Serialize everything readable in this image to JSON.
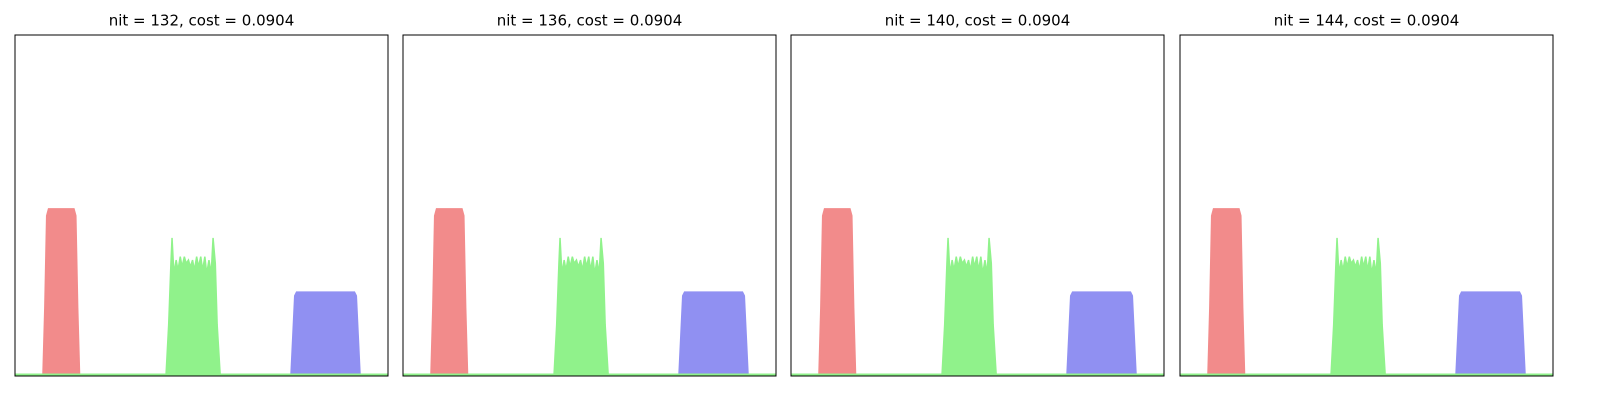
{
  "chart_data": [
    {
      "type": "area",
      "title": "nit = 132, cost = 0.0904",
      "xlim": [
        0,
        1
      ],
      "ylim": [
        0,
        1
      ],
      "series": [
        {
          "color": "#f28b8b",
          "x": [
            0.075,
            0.08,
            0.085,
            0.09,
            0.158,
            0.163,
            0.168,
            0.173
          ],
          "values": [
            0.005,
            0.2,
            0.47,
            0.49,
            0.49,
            0.47,
            0.2,
            0.005
          ]
        },
        {
          "color": "#9090f2",
          "x": [
            0.74,
            0.745,
            0.75,
            0.755,
            0.91,
            0.915,
            0.92,
            0.925
          ],
          "values": [
            0.005,
            0.12,
            0.235,
            0.246,
            0.246,
            0.235,
            0.12,
            0.005
          ]
        },
        {
          "color": "#90f28b",
          "x": [
            0,
            0.405,
            0.412,
            0.418,
            0.421,
            0.426,
            0.432,
            0.437,
            0.443,
            0.448,
            0.454,
            0.459,
            0.465,
            0.47,
            0.476,
            0.481,
            0.487,
            0.492,
            0.498,
            0.503,
            0.509,
            0.514,
            0.52,
            0.526,
            0.531,
            0.537,
            0.542,
            0.55,
            1
          ],
          "values": [
            0.005,
            0.005,
            0.15,
            0.33,
            0.405,
            0.3,
            0.34,
            0.31,
            0.35,
            0.32,
            0.35,
            0.33,
            0.34,
            0.32,
            0.34,
            0.31,
            0.35,
            0.32,
            0.35,
            0.31,
            0.35,
            0.3,
            0.34,
            0.3,
            0.405,
            0.33,
            0.15,
            0.005,
            0.005
          ]
        }
      ]
    },
    {
      "type": "area",
      "title": "nit = 136, cost = 0.0904",
      "xlim": [
        0,
        1
      ],
      "ylim": [
        0,
        1
      ],
      "series": [
        {
          "color": "#f28b8b",
          "x": [
            0.075,
            0.08,
            0.085,
            0.09,
            0.158,
            0.163,
            0.168,
            0.173
          ],
          "values": [
            0.005,
            0.2,
            0.47,
            0.49,
            0.49,
            0.47,
            0.2,
            0.005
          ]
        },
        {
          "color": "#9090f2",
          "x": [
            0.74,
            0.745,
            0.75,
            0.755,
            0.91,
            0.915,
            0.92,
            0.925
          ],
          "values": [
            0.005,
            0.12,
            0.235,
            0.246,
            0.246,
            0.235,
            0.12,
            0.005
          ]
        },
        {
          "color": "#90f28b",
          "x": [
            0,
            0.405,
            0.412,
            0.418,
            0.421,
            0.426,
            0.432,
            0.437,
            0.443,
            0.448,
            0.454,
            0.459,
            0.465,
            0.47,
            0.476,
            0.481,
            0.487,
            0.492,
            0.498,
            0.503,
            0.509,
            0.514,
            0.52,
            0.526,
            0.531,
            0.537,
            0.542,
            0.55,
            1
          ],
          "values": [
            0.005,
            0.005,
            0.15,
            0.33,
            0.405,
            0.3,
            0.34,
            0.31,
            0.35,
            0.32,
            0.35,
            0.33,
            0.34,
            0.32,
            0.34,
            0.31,
            0.35,
            0.32,
            0.35,
            0.31,
            0.35,
            0.3,
            0.34,
            0.3,
            0.405,
            0.33,
            0.15,
            0.005,
            0.005
          ]
        }
      ]
    },
    {
      "type": "area",
      "title": "nit = 140, cost = 0.0904",
      "xlim": [
        0,
        1
      ],
      "ylim": [
        0,
        1
      ],
      "series": [
        {
          "color": "#f28b8b",
          "x": [
            0.075,
            0.08,
            0.085,
            0.09,
            0.158,
            0.163,
            0.168,
            0.173
          ],
          "values": [
            0.005,
            0.2,
            0.47,
            0.49,
            0.49,
            0.47,
            0.2,
            0.005
          ]
        },
        {
          "color": "#9090f2",
          "x": [
            0.74,
            0.745,
            0.75,
            0.755,
            0.91,
            0.915,
            0.92,
            0.925
          ],
          "values": [
            0.005,
            0.12,
            0.235,
            0.246,
            0.246,
            0.235,
            0.12,
            0.005
          ]
        },
        {
          "color": "#90f28b",
          "x": [
            0,
            0.405,
            0.412,
            0.418,
            0.421,
            0.426,
            0.432,
            0.437,
            0.443,
            0.448,
            0.454,
            0.459,
            0.465,
            0.47,
            0.476,
            0.481,
            0.487,
            0.492,
            0.498,
            0.503,
            0.509,
            0.514,
            0.52,
            0.526,
            0.531,
            0.537,
            0.542,
            0.55,
            1
          ],
          "values": [
            0.005,
            0.005,
            0.15,
            0.33,
            0.405,
            0.3,
            0.34,
            0.31,
            0.35,
            0.32,
            0.35,
            0.33,
            0.34,
            0.32,
            0.34,
            0.31,
            0.35,
            0.32,
            0.35,
            0.31,
            0.35,
            0.3,
            0.34,
            0.3,
            0.405,
            0.33,
            0.15,
            0.005,
            0.005
          ]
        }
      ]
    },
    {
      "type": "area",
      "title": "nit = 144, cost = 0.0904",
      "xlim": [
        0,
        1
      ],
      "ylim": [
        0,
        1
      ],
      "series": [
        {
          "color": "#f28b8b",
          "x": [
            0.075,
            0.08,
            0.085,
            0.09,
            0.158,
            0.163,
            0.168,
            0.173
          ],
          "values": [
            0.005,
            0.2,
            0.47,
            0.49,
            0.49,
            0.47,
            0.2,
            0.005
          ]
        },
        {
          "color": "#9090f2",
          "x": [
            0.74,
            0.745,
            0.75,
            0.755,
            0.91,
            0.915,
            0.92,
            0.925
          ],
          "values": [
            0.005,
            0.12,
            0.235,
            0.246,
            0.246,
            0.235,
            0.12,
            0.005
          ]
        },
        {
          "color": "#90f28b",
          "x": [
            0,
            0.405,
            0.412,
            0.418,
            0.421,
            0.426,
            0.432,
            0.437,
            0.443,
            0.448,
            0.454,
            0.459,
            0.465,
            0.47,
            0.476,
            0.481,
            0.487,
            0.492,
            0.498,
            0.503,
            0.509,
            0.514,
            0.52,
            0.526,
            0.531,
            0.537,
            0.542,
            0.55,
            1
          ],
          "values": [
            0.005,
            0.005,
            0.15,
            0.33,
            0.405,
            0.3,
            0.34,
            0.31,
            0.35,
            0.32,
            0.35,
            0.33,
            0.34,
            0.32,
            0.34,
            0.31,
            0.35,
            0.32,
            0.35,
            0.31,
            0.35,
            0.3,
            0.34,
            0.3,
            0.405,
            0.33,
            0.15,
            0.005,
            0.005
          ]
        }
      ]
    }
  ]
}
